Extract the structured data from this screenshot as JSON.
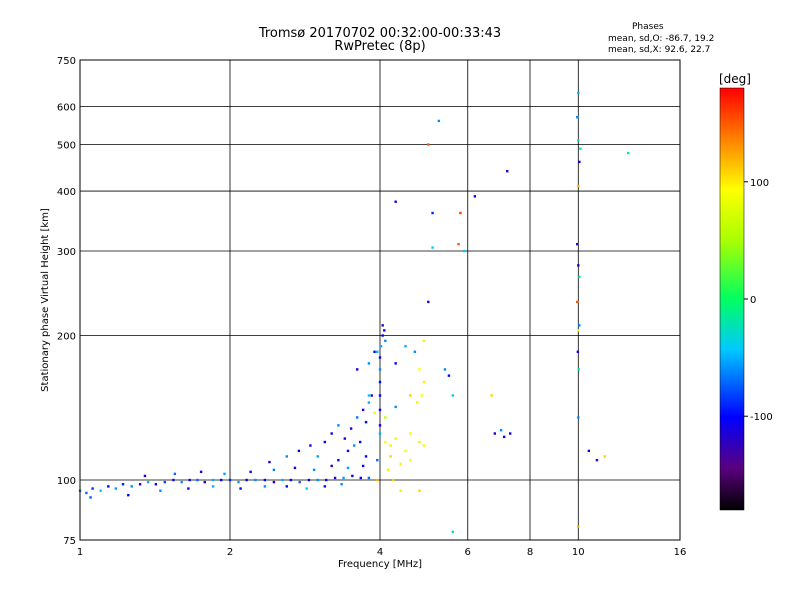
{
  "header": {
    "title_line1": "Tromsø 20170702 00:32:00-00:33:43",
    "title_line2": "RwPretec (8p)",
    "info_title": "Phases",
    "info_line1": "mean, sd,O: -86.7, 19.2",
    "info_line2": "mean, sd,X:  92.6, 22.7"
  },
  "colorbar": {
    "label": "[deg]",
    "ticks": [
      {
        "value": 100,
        "label": "100"
      },
      {
        "value": 0,
        "label": "0"
      },
      {
        "value": -100,
        "label": "-100"
      }
    ],
    "range": [
      -180,
      180
    ]
  },
  "chart_data": {
    "type": "scatter",
    "xlabel": "Frequency [MHz]",
    "ylabel": "Stationary phase Virtual Height [km]",
    "xscale": "log",
    "yscale": "log",
    "xlim": [
      1,
      16
    ],
    "ylim": [
      75,
      750
    ],
    "xticks": [
      {
        "value": 1,
        "label": "1"
      },
      {
        "value": 2,
        "label": "2"
      },
      {
        "value": 4,
        "label": "4"
      },
      {
        "value": 6,
        "label": "6"
      },
      {
        "value": 8,
        "label": "8"
      },
      {
        "value": 10,
        "label": "10"
      },
      {
        "value": 16,
        "label": "16"
      }
    ],
    "yticks": [
      {
        "value": 75,
        "label": "75"
      },
      {
        "value": 100,
        "label": "100"
      },
      {
        "value": 200,
        "label": "200"
      },
      {
        "value": 300,
        "label": "300"
      },
      {
        "value": 400,
        "label": "400"
      },
      {
        "value": 500,
        "label": "500"
      },
      {
        "value": 600,
        "label": "600"
      },
      {
        "value": 750,
        "label": "750"
      }
    ],
    "grid": true,
    "points": [
      [
        1.0,
        95,
        -60
      ],
      [
        1.03,
        94,
        -70
      ],
      [
        1.06,
        96,
        -90
      ],
      [
        1.1,
        95,
        -40
      ],
      [
        1.14,
        97,
        -100
      ],
      [
        1.18,
        96,
        -55
      ],
      [
        1.22,
        98,
        -95
      ],
      [
        1.27,
        97,
        -60
      ],
      [
        1.32,
        98,
        -110
      ],
      [
        1.37,
        99,
        -50
      ],
      [
        1.42,
        98,
        -100
      ],
      [
        1.48,
        99,
        -80
      ],
      [
        1.54,
        100,
        -110
      ],
      [
        1.6,
        99,
        -60
      ],
      [
        1.66,
        100,
        -105
      ],
      [
        1.72,
        100,
        -70
      ],
      [
        1.78,
        99,
        -115
      ],
      [
        1.85,
        100,
        -50
      ],
      [
        1.92,
        100,
        -100
      ],
      [
        2.0,
        100,
        -90
      ],
      [
        2.08,
        99,
        -55
      ],
      [
        2.16,
        100,
        -110
      ],
      [
        2.25,
        100,
        -60
      ],
      [
        2.35,
        100,
        -100
      ],
      [
        2.45,
        99,
        -115
      ],
      [
        2.55,
        100,
        -50
      ],
      [
        2.65,
        100,
        -105
      ],
      [
        2.76,
        99,
        -70
      ],
      [
        2.88,
        100,
        -110
      ],
      [
        3.0,
        100,
        -60
      ],
      [
        3.12,
        100,
        -100
      ],
      [
        3.25,
        101,
        -120
      ],
      [
        3.38,
        101,
        -55
      ],
      [
        3.52,
        102,
        -110
      ],
      [
        3.66,
        101,
        -100
      ],
      [
        3.8,
        101,
        -70
      ],
      [
        3.95,
        100,
        120
      ],
      [
        1.05,
        92,
        -75
      ],
      [
        1.25,
        93,
        -100
      ],
      [
        1.45,
        95,
        -60
      ],
      [
        1.65,
        96,
        -110
      ],
      [
        1.85,
        97,
        -50
      ],
      [
        2.1,
        96,
        -105
      ],
      [
        2.35,
        97,
        -60
      ],
      [
        2.6,
        97,
        -100
      ],
      [
        2.85,
        96,
        -40
      ],
      [
        3.1,
        97,
        -110
      ],
      [
        3.35,
        98,
        -60
      ],
      [
        1.35,
        102,
        -110
      ],
      [
        1.55,
        103,
        -70
      ],
      [
        1.75,
        104,
        -115
      ],
      [
        1.95,
        103,
        -55
      ],
      [
        2.2,
        104,
        -100
      ],
      [
        2.45,
        105,
        -65
      ],
      [
        2.7,
        106,
        -110
      ],
      [
        2.95,
        105,
        -60
      ],
      [
        3.2,
        107,
        -115
      ],
      [
        3.45,
        106,
        -55
      ],
      [
        3.7,
        107,
        -100
      ],
      [
        2.4,
        109,
        -110
      ],
      [
        2.6,
        112,
        -60
      ],
      [
        2.75,
        115,
        -100
      ],
      [
        2.9,
        118,
        -110
      ],
      [
        3.0,
        112,
        -55
      ],
      [
        3.1,
        120,
        -105
      ],
      [
        3.2,
        125,
        -110
      ],
      [
        3.3,
        130,
        -60
      ],
      [
        3.4,
        122,
        -100
      ],
      [
        3.5,
        128,
        -115
      ],
      [
        3.6,
        135,
        -65
      ],
      [
        3.7,
        140,
        -110
      ],
      [
        3.75,
        132,
        -100
      ],
      [
        3.8,
        145,
        -50
      ],
      [
        3.85,
        150,
        -110
      ],
      [
        3.9,
        138,
        80
      ],
      [
        3.95,
        110,
        -70
      ],
      [
        3.3,
        110,
        -110
      ],
      [
        3.45,
        115,
        -100
      ],
      [
        3.55,
        118,
        -60
      ],
      [
        3.65,
        120,
        -110
      ],
      [
        3.75,
        112,
        -100
      ],
      [
        4.0,
        180,
        -110
      ],
      [
        4.0,
        170,
        -60
      ],
      [
        4.0,
        160,
        -100
      ],
      [
        4.0,
        150,
        -110
      ],
      [
        4.02,
        190,
        -50
      ],
      [
        4.05,
        200,
        -110
      ],
      [
        4.05,
        210,
        -120
      ],
      [
        4.08,
        205,
        -100
      ],
      [
        4.1,
        195,
        -60
      ],
      [
        4.0,
        140,
        -100
      ],
      [
        4.0,
        130,
        -110
      ],
      [
        4.0,
        125,
        -50
      ],
      [
        4.1,
        120,
        90
      ],
      [
        4.2,
        118,
        100
      ],
      [
        4.3,
        122,
        80
      ],
      [
        4.2,
        112,
        110
      ],
      [
        4.4,
        108,
        100
      ],
      [
        4.5,
        115,
        90
      ],
      [
        4.6,
        125,
        95
      ],
      [
        4.1,
        135,
        60
      ],
      [
        4.3,
        142,
        -60
      ],
      [
        4.6,
        150,
        110
      ],
      [
        4.9,
        160,
        100
      ],
      [
        4.7,
        185,
        -60
      ],
      [
        4.5,
        190,
        -50
      ],
      [
        4.3,
        175,
        -100
      ],
      [
        4.8,
        170,
        95
      ],
      [
        4.9,
        195,
        100
      ],
      [
        4.15,
        105,
        80
      ],
      [
        4.25,
        100,
        110
      ],
      [
        4.4,
        95,
        100
      ],
      [
        4.6,
        110,
        90
      ],
      [
        4.8,
        120,
        100
      ],
      [
        4.9,
        118,
        80
      ],
      [
        4.75,
        145,
        100
      ],
      [
        4.85,
        150,
        90
      ],
      [
        3.8,
        150,
        -40
      ],
      [
        3.6,
        170,
        -110
      ],
      [
        3.8,
        175,
        -60
      ],
      [
        3.9,
        185,
        -100
      ],
      [
        3.95,
        185,
        -50
      ],
      [
        4.3,
        380,
        -110
      ],
      [
        5.1,
        360,
        -90
      ],
      [
        5.25,
        560,
        -60
      ],
      [
        5.0,
        500,
        150
      ],
      [
        5.1,
        305,
        -40
      ],
      [
        5.0,
        235,
        -110
      ],
      [
        5.4,
        170,
        -60
      ],
      [
        5.5,
        165,
        -100
      ],
      [
        5.6,
        150,
        -40
      ],
      [
        5.8,
        360,
        160
      ],
      [
        5.75,
        310,
        150
      ],
      [
        5.9,
        300,
        -40
      ],
      [
        6.2,
        390,
        -110
      ],
      [
        6.7,
        150,
        110
      ],
      [
        6.8,
        125,
        -110
      ],
      [
        7.0,
        127,
        -60
      ],
      [
        7.1,
        123,
        -100
      ],
      [
        7.3,
        125,
        -110
      ],
      [
        7.2,
        440,
        -120
      ],
      [
        10.0,
        640,
        -50
      ],
      [
        9.95,
        570,
        -60
      ],
      [
        10.0,
        510,
        -20
      ],
      [
        10.05,
        460,
        -110
      ],
      [
        10.0,
        410,
        120
      ],
      [
        9.95,
        310,
        -120
      ],
      [
        10.0,
        280,
        -110
      ],
      [
        10.05,
        265,
        -20
      ],
      [
        9.95,
        235,
        150
      ],
      [
        10.05,
        210,
        -60
      ],
      [
        10.0,
        205,
        90
      ],
      [
        9.98,
        185,
        -110
      ],
      [
        10.02,
        170,
        -20
      ],
      [
        10.0,
        135,
        -60
      ],
      [
        10.0,
        80,
        120
      ],
      [
        10.1,
        490,
        -10
      ],
      [
        10.5,
        115,
        -110
      ],
      [
        10.9,
        110,
        -130
      ],
      [
        11.3,
        112,
        110
      ],
      [
        12.6,
        480,
        -20
      ],
      [
        5.6,
        78,
        -30
      ],
      [
        4.8,
        95,
        110
      ]
    ]
  }
}
